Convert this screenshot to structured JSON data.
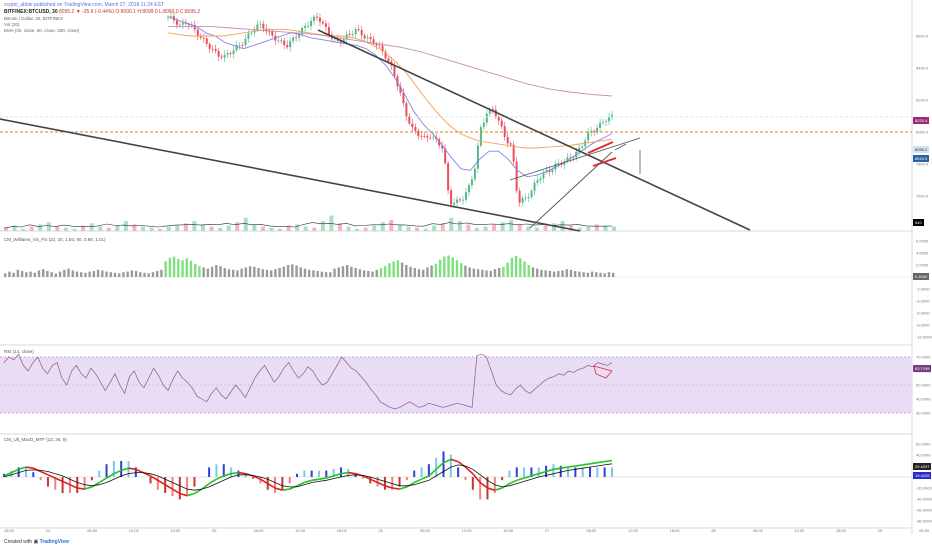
{
  "header": {
    "line1": "crypto_abble published on TradingView.com, March 27, 2018 11:24 EST",
    "symbol": "BITFINEX:BTCUSD, 30",
    "ohlc": "8095.2 ▼ -35.9 (-0.44%) O:8090.1 H:8099.0 L:8060.0 C:8095.2",
    "line3": "Bitcoin / Dollar, 30, BITFINEX",
    "line4": "Vol (20)",
    "line5": "EMA (20, close, 50, close, 200, close)"
  },
  "panes": {
    "williams": "CM_Williams_Vix_Fix (22, 20, 1.50, 50, 0.85, 1.01)",
    "rsi": "RSI (14, close)",
    "ult": "CM_Ult_MacD_MTF (12, 26, 9)"
  },
  "badges": {
    "ema200": {
      "text": "8225.4",
      "color": "#9c2a73"
    },
    "price_top": {
      "text": "8095.2",
      "color": "#cfe6ef"
    },
    "price_mid": {
      "text": "8016.5",
      "color": "#2b5fa8"
    },
    "vol": {
      "text": "540",
      "color": "#000000"
    },
    "vix": {
      "text": "0.4000",
      "color": "#666666"
    },
    "rsi": {
      "text": "63.7199",
      "color": "#7b3a86"
    },
    "ult_a": {
      "text": "29.4037",
      "color": "#222222"
    },
    "ult_b": {
      "text": "19.4226",
      "color": "#2b2bc9"
    }
  },
  "footer": {
    "created": "Created with",
    "brand": "TradingView"
  },
  "chart_data": [
    {
      "type": "candlestick",
      "title": "Bitcoin / Dollar, 30, BITFINEX",
      "y_ticks": [
        "8600.0",
        "8400.0",
        "8200.0",
        "8000.0",
        "7800.0",
        "7600.0"
      ],
      "x_ticks": [
        "15:00",
        "24",
        "06:00",
        "12:00",
        "15:00",
        "25",
        "06:00",
        "12:00",
        "18:00",
        "26",
        "06:00",
        "12:00",
        "18:00",
        "27",
        "06:00",
        "12:00",
        "18:00",
        "28",
        "06:00",
        "12:00",
        "18:00",
        "29",
        "06:00"
      ],
      "price_path": [
        8720,
        8700,
        8660,
        8690,
        8650,
        8600,
        8560,
        8520,
        8480,
        8470,
        8500,
        8530,
        8560,
        8610,
        8660,
        8670,
        8620,
        8590,
        8560,
        8540,
        8580,
        8620,
        8660,
        8700,
        8720,
        8660,
        8600,
        8560,
        8580,
        8610,
        8640,
        8610,
        8580,
        8560,
        8520,
        8460,
        8380,
        8260,
        8120,
        8020,
        7990,
        7960,
        7980,
        7940,
        7900,
        7560,
        7560,
        7580,
        7640,
        7760,
        8020,
        8120,
        8140,
        8060,
        7960,
        7900,
        7560,
        7580,
        7620,
        7700,
        7740,
        7760,
        7790,
        7810,
        7830,
        7860,
        7900,
        7980,
        8010,
        8040,
        8080,
        8095
      ],
      "ema_series": [
        {
          "name": "EMA 20",
          "color": "#7c86e8",
          "values": [
            8720,
            8700,
            8680,
            8660,
            8620,
            8600,
            8560,
            8540,
            8520,
            8540,
            8560,
            8580,
            8600,
            8620,
            8610,
            8590,
            8580,
            8570,
            8560,
            8550,
            8540,
            8520,
            8480,
            8420,
            8340,
            8240,
            8130,
            8050,
            7990,
            7920,
            7840,
            7770,
            7760,
            7830,
            7880,
            7880,
            7830,
            7760,
            7720,
            7730,
            7750,
            7780,
            7810,
            7850,
            7890,
            7930,
            7960,
            7990
          ]
        },
        {
          "name": "EMA 50",
          "color": "#f0a35a",
          "values": [
            8620,
            8610,
            8600,
            8600,
            8600,
            8600,
            8610,
            8620,
            8630,
            8640,
            8640,
            8640,
            8630,
            8620,
            8610,
            8600,
            8600,
            8590,
            8570,
            8540,
            8500,
            8440,
            8370,
            8280,
            8190,
            8110,
            8040,
            7990,
            7960,
            7940,
            7930,
            7920,
            7910,
            7900,
            7900,
            7905,
            7910,
            7915,
            7925,
            7935,
            7945,
            7955
          ]
        },
        {
          "name": "EMA 200",
          "color": "#c08fb4",
          "values": [
            8660,
            8660,
            8660,
            8650,
            8640,
            8630,
            8620,
            8610,
            8590,
            8570,
            8550,
            8530,
            8500,
            8460,
            8420,
            8380,
            8340,
            8300,
            8270,
            8250,
            8235,
            8225
          ]
        }
      ],
      "levels": [
        {
          "name": "horizontal support",
          "color": "#e67e22",
          "value": 8000
        },
        {
          "name": "horizontal resistance",
          "color": "#cfe6ef",
          "value": 8095
        }
      ],
      "trendlines": [
        {
          "name": "descending resistance 1",
          "color": "#444444"
        },
        {
          "name": "descending resistance 2",
          "color": "#444444"
        },
        {
          "name": "rising wedge",
          "color": "#555555"
        },
        {
          "name": "bear flag",
          "color": "#e02b2b"
        }
      ]
    },
    {
      "type": "bar",
      "title": "Vol (20)",
      "values": [
        3,
        5,
        2,
        4,
        6,
        8,
        4,
        3,
        2,
        5,
        7,
        4,
        3,
        5,
        9,
        6,
        4,
        3,
        2,
        4,
        5,
        7,
        9,
        6,
        4,
        3,
        5,
        8,
        12,
        6,
        4,
        3,
        2,
        5,
        6,
        4,
        3,
        9,
        14,
        7,
        4,
        2,
        3,
        5,
        8,
        10,
        6,
        4,
        3,
        2,
        5,
        7,
        12,
        9,
        6,
        3,
        4,
        6,
        8,
        10,
        6,
        4,
        3,
        5,
        7,
        9,
        5,
        3,
        4,
        6,
        5,
        4
      ]
    },
    {
      "type": "bar",
      "title": "CM_Williams_Vix_Fix (22, 20, 1.50, 50, 0.85, 1.01)",
      "y_ticks": [
        "6.0000",
        "4.0000",
        "2.0000",
        "0.0000",
        "-2.0000",
        "-4.0000",
        "-6.0000",
        "-8.0000",
        "-10.0000"
      ],
      "values": [
        0.6,
        0.9,
        0.7,
        1.2,
        1.0,
        0.8,
        0.9,
        0.7,
        1.1,
        1.3,
        1.0,
        0.8,
        0.6,
        0.9,
        1.2,
        1.4,
        1.1,
        0.9,
        0.8,
        0.7,
        0.9,
        1.0,
        1.2,
        1.1,
        0.9,
        0.8,
        0.7,
        0.6,
        0.8,
        0.9,
        1.1,
        1.0,
        0.8,
        0.7,
        0.6,
        0.8,
        1.0,
        1.2,
        2.6,
        3.2,
        3.4,
        3.0,
        2.8,
        3.1,
        2.7,
        2.2,
        1.8,
        1.6,
        1.4,
        1.7,
        2.0,
        1.8,
        1.5,
        1.3,
        1.2,
        1.1,
        1.4,
        1.6,
        1.8,
        1.7,
        1.5,
        1.3,
        1.2,
        1.1,
        1.3,
        1.5,
        1.7,
        2.0,
        2.1,
        1.9,
        1.6,
        1.4,
        1.2,
        1.1,
        1.0,
        0.9,
        0.8,
        0.8,
        1.4,
        1.6,
        1.8,
        2.0,
        1.7,
        1.5,
        1.3,
        1.1,
        1.0,
        0.9,
        1.2,
        1.5,
        1.8,
        2.3,
        2.6,
        2.8,
        2.4,
        2.0,
        1.7,
        1.5,
        1.3,
        1.2,
        1.6,
        1.9,
        2.2,
        2.9,
        3.4,
        3.6,
        3.3,
        2.8,
        2.3,
        1.9,
        1.6,
        1.4,
        1.3,
        1.2,
        1.1,
        1.0,
        1.3,
        1.5,
        1.7,
        2.4,
        3.2,
        3.5,
        3.1,
        2.6,
        2.0,
        1.6,
        1.4,
        1.2,
        1.1,
        1.0,
        0.9,
        1.0,
        1.1,
        1.3,
        1.2,
        1.0,
        0.9,
        0.8,
        0.7,
        0.9,
        0.8,
        0.7,
        0.6,
        0.8,
        0.7
      ],
      "green_ranges": [
        [
          38,
          46
        ],
        [
          89,
          93
        ],
        [
          102,
          108
        ],
        [
          118,
          124
        ]
      ]
    },
    {
      "type": "line",
      "title": "RSI (14, close)",
      "y_ticks": [
        "70.0000",
        "60.0000",
        "50.0000",
        "40.0000",
        "30.0000"
      ],
      "band": [
        30,
        70
      ],
      "values": [
        66,
        70,
        68,
        72,
        64,
        60,
        66,
        70,
        62,
        58,
        64,
        66,
        55,
        50,
        60,
        64,
        58,
        55,
        62,
        58,
        52,
        46,
        52,
        58,
        50,
        44,
        56,
        60,
        52,
        48,
        55,
        62,
        57,
        50,
        46,
        54,
        60,
        55,
        52,
        48,
        42,
        40,
        38,
        44,
        48,
        43,
        40,
        45,
        50,
        46,
        41,
        48,
        55,
        60,
        64,
        58,
        52,
        56,
        62,
        66,
        60,
        55,
        58,
        63,
        60,
        54,
        50,
        52,
        58,
        64,
        70,
        66,
        62,
        60,
        56,
        52,
        47,
        43,
        38,
        36,
        34,
        33,
        34,
        36,
        38,
        36,
        34,
        35,
        37,
        36,
        35,
        34,
        35,
        36,
        37,
        36,
        35,
        34,
        71,
        72,
        70,
        60,
        50,
        46,
        44,
        43,
        47,
        50,
        46,
        44,
        47,
        50,
        53,
        55,
        56,
        58,
        57,
        60,
        59,
        61,
        62,
        64,
        63,
        66,
        65,
        64,
        66
      ]
    },
    {
      "type": "line",
      "title": "CM_Ult_MacD_MTF (12, 26, 9)",
      "y_ticks": [
        "60.0000",
        "40.0000",
        "20.0000",
        "0.0000",
        "-20.0000",
        "-40.0000",
        "-60.0000",
        "-80.0000"
      ],
      "macd": [
        2,
        8,
        14,
        18,
        16,
        10,
        4,
        -2,
        -8,
        -14,
        -20,
        -22,
        -18,
        -10,
        -2,
        6,
        12,
        16,
        14,
        8,
        2,
        -6,
        -14,
        -22,
        -30,
        -34,
        -30,
        -22,
        -12,
        -4,
        2,
        6,
        8,
        6,
        2,
        -4,
        -12,
        -20,
        -24,
        -22,
        -16,
        -10,
        -6,
        -4,
        -2,
        2,
        6,
        8,
        6,
        2,
        -4,
        -10,
        -16,
        -20,
        -22,
        -18,
        -10,
        -4,
        2,
        14,
        26,
        32,
        28,
        18,
        6,
        -10,
        -20,
        -24,
        -20,
        -12,
        -6,
        -2,
        2,
        6,
        10,
        14,
        16,
        18,
        20,
        22,
        24,
        26,
        28,
        30
      ],
      "signal": [
        0,
        4,
        8,
        12,
        13,
        12,
        10,
        6,
        2,
        -4,
        -10,
        -14,
        -16,
        -14,
        -10,
        -4,
        2,
        6,
        8,
        8,
        6,
        2,
        -4,
        -10,
        -16,
        -22,
        -24,
        -22,
        -18,
        -12,
        -6,
        0,
        4,
        4,
        3,
        0,
        -4,
        -10,
        -16,
        -18,
        -18,
        -14,
        -10,
        -8,
        -6,
        -3,
        0,
        3,
        4,
        3,
        0,
        -4,
        -8,
        -12,
        -16,
        -16,
        -14,
        -10,
        -6,
        2,
        10,
        18,
        22,
        20,
        14,
        4,
        -6,
        -14,
        -18,
        -16,
        -12,
        -8,
        -4,
        0,
        3,
        6,
        9,
        12,
        14,
        16,
        18,
        20,
        22,
        24
      ]
    }
  ]
}
